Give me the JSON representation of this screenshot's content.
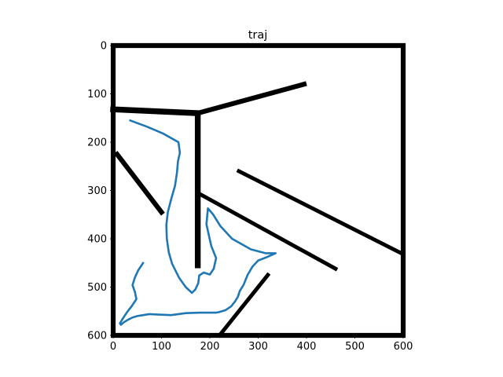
{
  "chart_data": {
    "type": "line",
    "title": "traj",
    "xlabel": "",
    "ylabel": "",
    "xlim": [
      0,
      600
    ],
    "ylim": [
      600,
      0
    ],
    "y_inverted": true,
    "grid": false,
    "xticks": [
      0,
      100,
      200,
      300,
      400,
      500,
      600
    ],
    "yticks": [
      0,
      100,
      200,
      300,
      400,
      500,
      600
    ],
    "background_image": "occupancy-map",
    "walls": [
      {
        "points": [
          [
            0,
            0
          ],
          [
            600,
            0
          ],
          [
            600,
            600
          ],
          [
            0,
            600
          ],
          [
            0,
            0
          ]
        ],
        "width": 10
      },
      {
        "points": [
          [
            0,
            132
          ],
          [
            175,
            140
          ]
        ],
        "width": 12
      },
      {
        "points": [
          [
            175,
            140
          ],
          [
            395,
            80
          ]
        ],
        "width": 10
      },
      {
        "points": [
          [
            175,
            150
          ],
          [
            175,
            455
          ]
        ],
        "width": 12
      },
      {
        "points": [
          [
            8,
            225
          ],
          [
            100,
            345
          ]
        ],
        "width": 10
      },
      {
        "points": [
          [
            175,
            305
          ],
          [
            460,
            462
          ]
        ],
        "width": 8
      },
      {
        "points": [
          [
            260,
            260
          ],
          [
            600,
            432
          ]
        ],
        "width": 8
      },
      {
        "points": [
          [
            220,
            600
          ],
          [
            320,
            475
          ]
        ],
        "width": 8
      }
    ],
    "series": [
      {
        "color": "#1f77b4",
        "x": [
          35,
          70,
          103,
          135,
          138,
          134,
          132,
          128,
          120,
          113,
          110,
          111,
          115,
          122,
          136,
          150,
          163,
          170,
          176,
          178,
          187,
          200,
          208,
          213,
          203,
          198,
          193,
          196,
          207,
          222,
          246,
          285,
          316,
          336,
          318,
          300,
          288,
          278,
          270,
          262,
          258,
          252,
          244,
          232,
          218,
          212,
          180,
          150,
          120,
          95,
          75,
          62,
          50,
          40,
          30,
          22,
          16,
          14,
          20,
          28,
          38,
          48,
          45,
          40,
          45,
          52,
          62
        ],
        "y": [
          155,
          168,
          182,
          200,
          222,
          240,
          263,
          290,
          318,
          345,
          372,
          400,
          428,
          452,
          480,
          500,
          512,
          505,
          492,
          476,
          470,
          474,
          462,
          440,
          415,
          393,
          370,
          337,
          350,
          374,
          400,
          422,
          430,
          430,
          438,
          445,
          458,
          475,
          495,
          508,
          520,
          530,
          540,
          548,
          552,
          553,
          553,
          554,
          558,
          557,
          556,
          558,
          560,
          563,
          568,
          573,
          578,
          575,
          565,
          553,
          540,
          525,
          510,
          496,
          480,
          465,
          450
        ]
      }
    ]
  }
}
